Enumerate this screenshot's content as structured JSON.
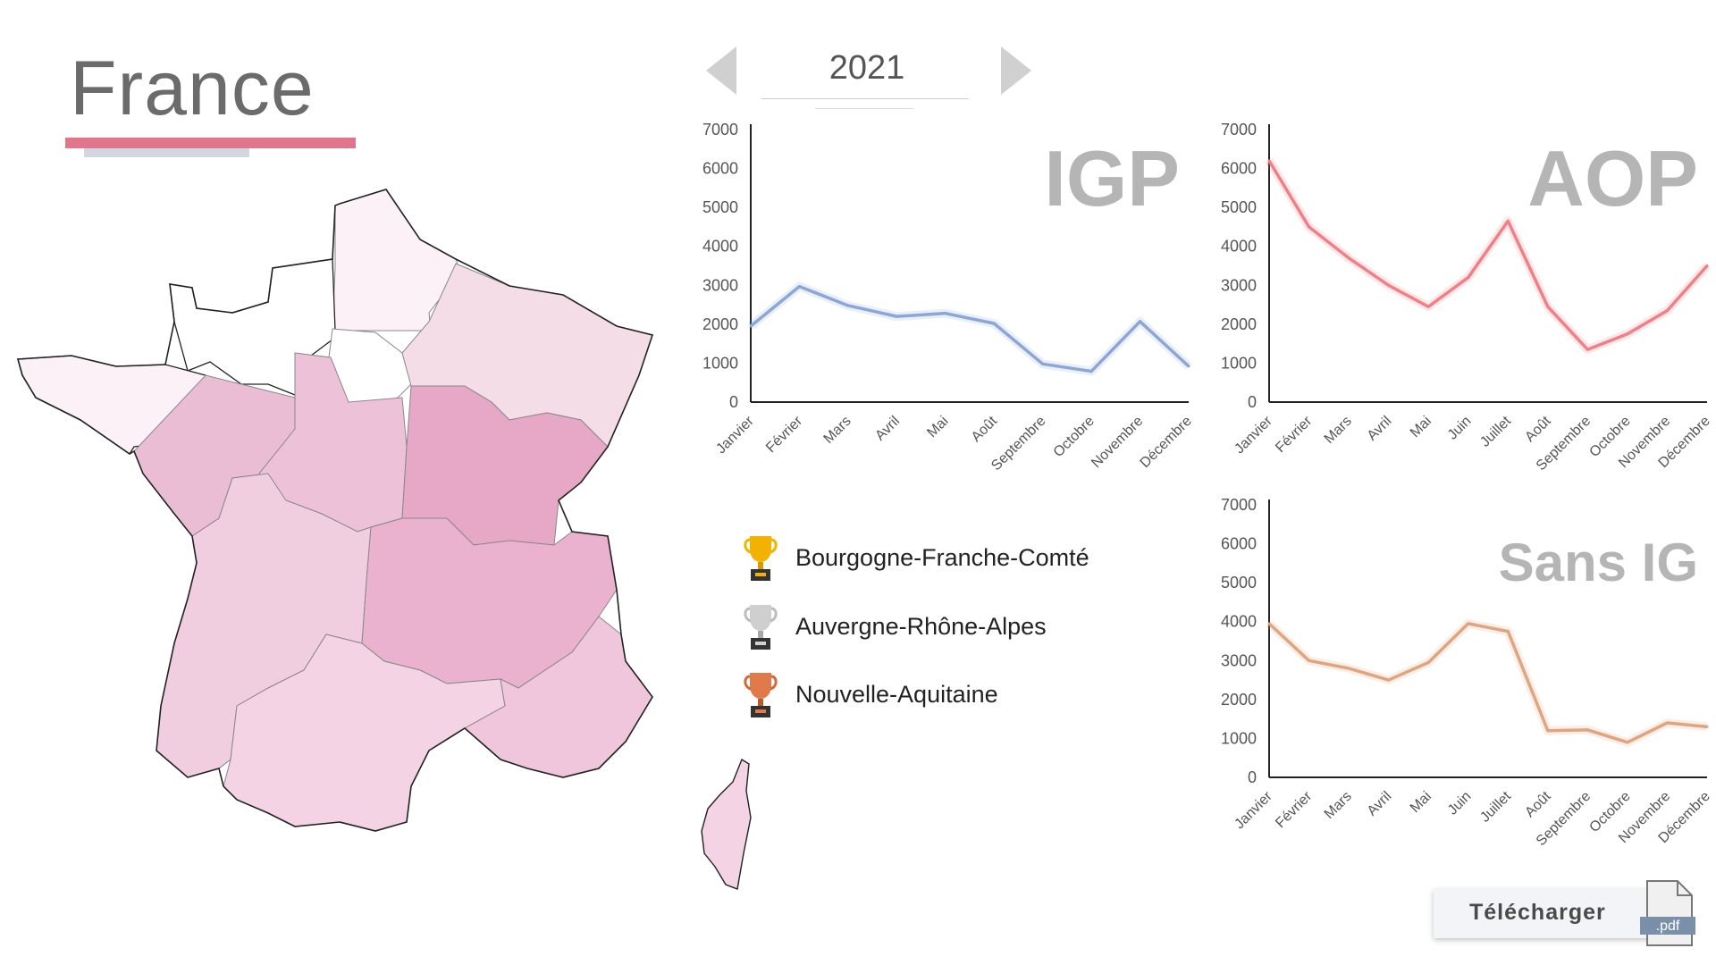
{
  "header": {
    "title": "France"
  },
  "year_selector": {
    "year": "2021"
  },
  "colors": {
    "accent": "#e0758c",
    "igp_line": "#8aa7d8",
    "aop_line": "#f27f86",
    "sans_ig_line": "#e0a57e",
    "map_stroke": "#222222"
  },
  "ranking": [
    {
      "place": "gold",
      "label": "Bourgogne-Franche-Comté",
      "icon": "gold-trophy-icon"
    },
    {
      "place": "silver",
      "label": "Auvergne-Rhône-Alpes",
      "icon": "silver-trophy-icon"
    },
    {
      "place": "bronze",
      "label": "Nouvelle-Aquitaine",
      "icon": "bronze-trophy-icon"
    }
  ],
  "download": {
    "label": "Télécharger",
    "file_badge": ".pdf"
  },
  "chart_data": [
    {
      "type": "line",
      "title": "IGP",
      "categories": [
        "Janvier",
        "Février",
        "Mars",
        "Avril",
        "Mai",
        "Août",
        "Septembre",
        "Octobre",
        "Novembre",
        "Décembre"
      ],
      "series": [
        {
          "values": [
            1950,
            2970,
            2480,
            2200,
            2280,
            2020,
            980,
            790,
            2070,
            920
          ]
        }
      ],
      "ylim": [
        0,
        7000
      ],
      "yticks": [
        0,
        1000,
        2000,
        3000,
        4000,
        5000,
        6000,
        7000
      ],
      "color": "#8aa7d8"
    },
    {
      "type": "line",
      "title": "AOP",
      "categories": [
        "Janvier",
        "Février",
        "Mars",
        "Avril",
        "Mai",
        "Juin",
        "Juillet",
        "Août",
        "Septembre",
        "Octobre",
        "Novembre",
        "Décembre"
      ],
      "series": [
        {
          "values": [
            6200,
            4500,
            3700,
            3000,
            2450,
            3200,
            4650,
            2450,
            1350,
            1750,
            2350,
            3500
          ]
        }
      ],
      "ylim": [
        0,
        7000
      ],
      "yticks": [
        0,
        1000,
        2000,
        3000,
        4000,
        5000,
        6000,
        7000
      ],
      "color": "#f27f86"
    },
    {
      "type": "line",
      "title": "Sans IG",
      "categories": [
        "Janvier",
        "Février",
        "Mars",
        "Avril",
        "Mai",
        "Juin",
        "Juillet",
        "Août",
        "Septembre",
        "Octobre",
        "Novembre",
        "Décembre"
      ],
      "series": [
        {
          "values": [
            3950,
            3000,
            2800,
            2500,
            2950,
            3950,
            3750,
            1200,
            1220,
            900,
            1400,
            1300
          ]
        }
      ],
      "ylim": [
        0,
        7000
      ],
      "yticks": [
        0,
        1000,
        2000,
        3000,
        4000,
        5000,
        6000,
        7000
      ],
      "color": "#e0a57e"
    }
  ]
}
